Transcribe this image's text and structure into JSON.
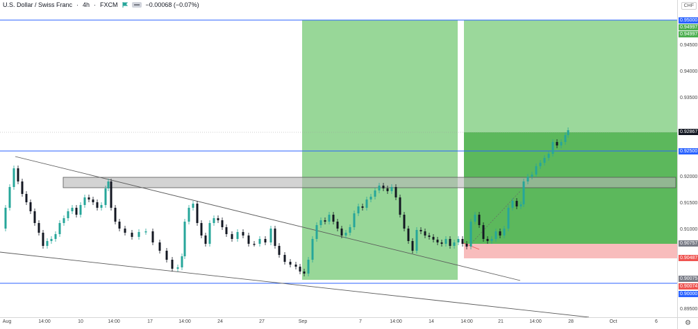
{
  "legend": {
    "symbol": "U.S. Dollar / Swiss Franc",
    "interval": "4h",
    "exchange": "FXCM",
    "change": "−0.00068 (−0.07%)",
    "flag_color": "#26a69a"
  },
  "currency_badge": "CHF",
  "price_axis": {
    "ticks": [
      "0.94500",
      "0.94000",
      "0.93500",
      "0.92000",
      "0.91500",
      "0.91000",
      "0.89500"
    ],
    "tags": [
      {
        "text": "0.95000",
        "color": "#2962ff"
      },
      {
        "text": "0.94997",
        "color": "#4caf50"
      },
      {
        "text": "0.94997",
        "color": "#4caf50"
      },
      {
        "text": "0.92867",
        "color": "#131722"
      },
      {
        "text": "0.92500",
        "color": "#2962ff"
      },
      {
        "text": "0.90757",
        "color": "#787b86"
      },
      {
        "text": "0.90487",
        "color": "#ef5350"
      },
      {
        "text": "0.90075",
        "color": "#787b86"
      },
      {
        "text": "0.90074",
        "color": "#ef5350"
      },
      {
        "text": "0.90000",
        "color": "#2962ff"
      }
    ]
  },
  "time_axis": {
    "labels": [
      "Aug",
      "14:00",
      "10",
      "14:00",
      "17",
      "14:00",
      "24",
      "27",
      "Sep",
      "7",
      "14:00",
      "14",
      "14:00",
      "21",
      "14:00",
      "28",
      "Oct",
      "6"
    ]
  },
  "settings_icon": "gear-icon",
  "colors": {
    "up": "#26a69a",
    "down": "#131722",
    "long_profit": "#4caf50",
    "stop_loss": "#ef5350",
    "level_line": "#2962ff"
  }
}
